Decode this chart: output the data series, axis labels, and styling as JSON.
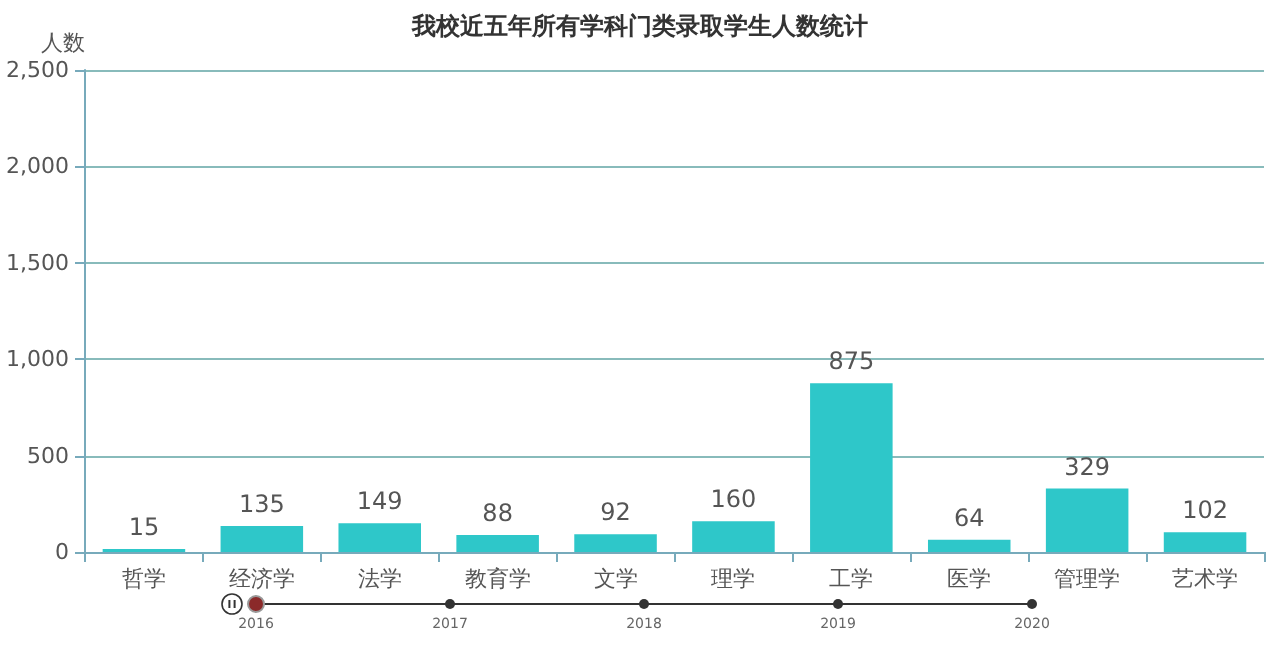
{
  "chart_data": {
    "type": "bar",
    "title": "我校近五年所有学科门类录取学生人数统计",
    "ylabel": "人数",
    "categories": [
      "哲学",
      "经济学",
      "法学",
      "教育学",
      "文学",
      "理学",
      "工学",
      "医学",
      "管理学",
      "艺术学"
    ],
    "values": [
      15,
      135,
      149,
      88,
      92,
      160,
      875,
      64,
      329,
      102
    ],
    "color": "#2ec7c9",
    "ylim": [
      0,
      2500
    ],
    "yticks": [
      {
        "value": 0,
        "label": "0"
      },
      {
        "value": 500,
        "label": "500"
      },
      {
        "value": 1000,
        "label": "1,000"
      },
      {
        "value": 1500,
        "label": "1,500"
      },
      {
        "value": 2000,
        "label": "2,000"
      },
      {
        "value": 2500,
        "label": "2,500"
      }
    ],
    "grid": "y",
    "data_labels": true,
    "annotations": [
      "2016",
      "2017",
      "2018",
      "2019",
      "2020"
    ]
  }
}
